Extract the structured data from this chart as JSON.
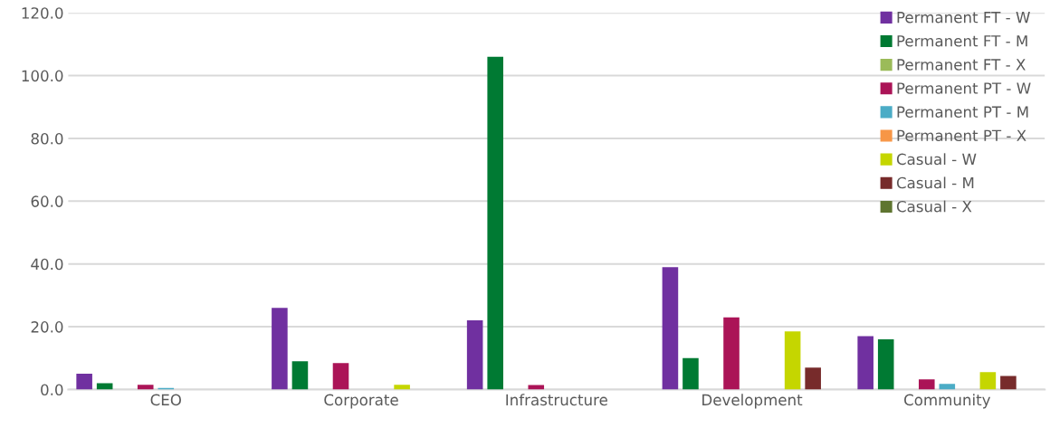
{
  "chart_data": {
    "type": "bar",
    "categories": [
      "CEO",
      "Corporate",
      "Infrastructure",
      "Development",
      "Community"
    ],
    "series": [
      {
        "name": "Permanent FT - W",
        "color": "#7030a0",
        "values": [
          5,
          26,
          22,
          39,
          17
        ]
      },
      {
        "name": "Permanent FT - M",
        "color": "#007a33",
        "values": [
          2,
          9,
          106,
          10,
          16
        ]
      },
      {
        "name": "Permanent FT - X",
        "color": "#9bbb59",
        "values": [
          0,
          0,
          0,
          0,
          0
        ]
      },
      {
        "name": "Permanent PT - W",
        "color": "#ab1457",
        "values": [
          1.5,
          8.4,
          1.4,
          23,
          3.2
        ]
      },
      {
        "name": "Permanent PT - M",
        "color": "#4bacc6",
        "values": [
          0.5,
          0,
          0,
          0,
          1.8
        ]
      },
      {
        "name": "Permanent PT - X",
        "color": "#f79646",
        "values": [
          0,
          0,
          0,
          0,
          0
        ]
      },
      {
        "name": "Casual - W",
        "color": "#c5d600",
        "values": [
          0,
          1.5,
          0,
          18.5,
          5.5
        ]
      },
      {
        "name": "Casual - M",
        "color": "#772b2b",
        "values": [
          0,
          0,
          0,
          7,
          4.3
        ]
      },
      {
        "name": "Casual - X",
        "color": "#5f7530",
        "values": [
          0,
          0,
          0,
          0,
          0
        ]
      }
    ],
    "ylim": [
      0,
      120
    ],
    "yticks": [
      {
        "value": 0,
        "label": "0.0"
      },
      {
        "value": 20,
        "label": "20.0"
      },
      {
        "value": 40,
        "label": "40.0"
      },
      {
        "value": 60,
        "label": "60.0"
      },
      {
        "value": 80,
        "label": "80.0"
      },
      {
        "value": 100,
        "label": "100.0"
      },
      {
        "value": 120,
        "label": "120.0"
      }
    ],
    "grid": "y",
    "legend": "top right"
  }
}
